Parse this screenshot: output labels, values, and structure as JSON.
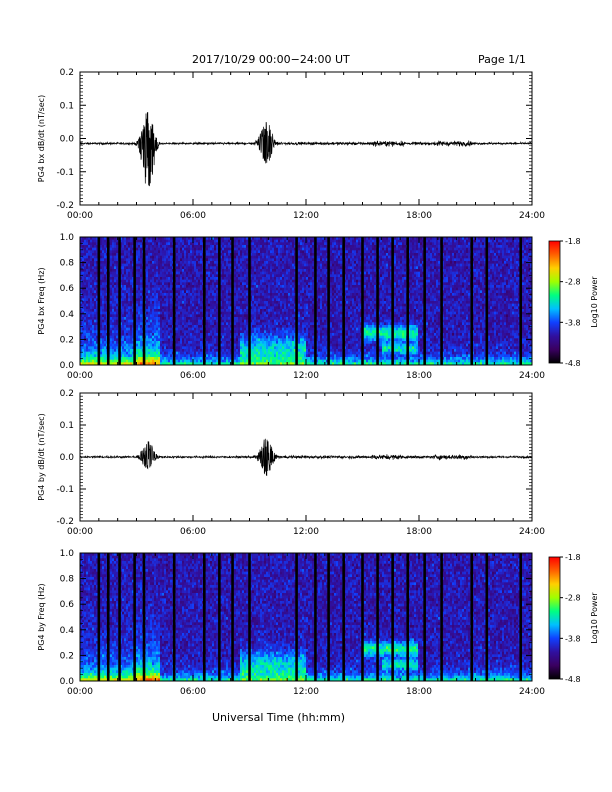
{
  "header": {
    "title": "2017/10/29  00:00−24:00 UT",
    "page": "Page 1/1"
  },
  "xaxis_title": "Universal Time (hh:mm)",
  "colors": {
    "trace": "#000000",
    "colorbar_stops": [
      "#000000",
      "#3a0060",
      "#3010a0",
      "#1040ff",
      "#00c0ff",
      "#00ff80",
      "#a0ff00",
      "#ffd000",
      "#ff6000",
      "#ff0000"
    ]
  },
  "chart_data": [
    {
      "type": "line",
      "ylabel": "PG4 bx dB/dt (nT/sec)",
      "xticks": [
        "00:00",
        "06:00",
        "12:00",
        "18:00",
        "24:00"
      ],
      "yticks": [
        "0.2",
        "0.1",
        "0.0",
        "-0.1",
        "-0.2"
      ],
      "xlim": [
        0,
        24
      ],
      "ylim": [
        -0.2,
        0.2
      ],
      "grid": false,
      "baseline": -0.015,
      "bursts": [
        {
          "t": 3.6,
          "amp_up": 0.1,
          "amp_down": -0.16
        },
        {
          "t": 9.9,
          "amp_up": 0.07,
          "amp_down": -0.06
        }
      ]
    },
    {
      "type": "heatmap",
      "ylabel": "PG4 bx Freq (Hz)",
      "xticks": [
        "00:00",
        "06:00",
        "12:00",
        "18:00",
        "24:00"
      ],
      "yticks": [
        "1.0",
        "0.8",
        "0.6",
        "0.4",
        "0.2",
        "0.0"
      ],
      "xlim": [
        0,
        24
      ],
      "ylim": [
        0,
        1.0
      ],
      "colorbar": {
        "label": "Log10 Power",
        "ticks": [
          "-1.8",
          "-2.8",
          "-3.8",
          "-4.8"
        ],
        "range": [
          -4.8,
          -1.8
        ]
      },
      "gaps_hours": [
        1.0,
        1.5,
        2.1,
        2.9,
        3.4,
        5.0,
        6.6,
        7.4,
        8.1,
        9.0,
        11.5,
        12.5,
        13.2,
        14.0,
        15.0,
        15.8,
        16.6,
        17.4,
        18.3,
        19.2,
        20.8,
        21.6,
        23.4
      ]
    },
    {
      "type": "line",
      "ylabel": "PG4 by dB/dt (nT/sec)",
      "xticks": [
        "00:00",
        "06:00",
        "12:00",
        "18:00",
        "24:00"
      ],
      "yticks": [
        "0.2",
        "0.1",
        "0.0",
        "-0.1",
        "-0.2"
      ],
      "xlim": [
        0,
        24
      ],
      "ylim": [
        -0.2,
        0.2
      ],
      "grid": false,
      "baseline": 0.0,
      "bursts": [
        {
          "t": 3.6,
          "amp_up": 0.05,
          "amp_down": -0.04
        },
        {
          "t": 9.9,
          "amp_up": 0.06,
          "amp_down": -0.06
        }
      ]
    },
    {
      "type": "heatmap",
      "ylabel": "PG4 by Freq (Hz)",
      "xticks": [
        "00:00",
        "06:00",
        "12:00",
        "18:00",
        "24:00"
      ],
      "yticks": [
        "1.0",
        "0.8",
        "0.6",
        "0.4",
        "0.2",
        "0.0"
      ],
      "xlim": [
        0,
        24
      ],
      "ylim": [
        0,
        1.0
      ],
      "colorbar": {
        "label": "Log10 Power",
        "ticks": [
          "-1.8",
          "-2.8",
          "-3.8",
          "-4.8"
        ],
        "range": [
          -4.8,
          -1.8
        ]
      },
      "gaps_hours": [
        1.0,
        1.5,
        2.1,
        2.9,
        3.4,
        5.0,
        6.6,
        7.4,
        8.1,
        9.0,
        11.5,
        12.5,
        13.2,
        14.0,
        15.0,
        15.8,
        16.6,
        17.4,
        18.3,
        19.2,
        20.8,
        21.6,
        23.4
      ]
    }
  ]
}
